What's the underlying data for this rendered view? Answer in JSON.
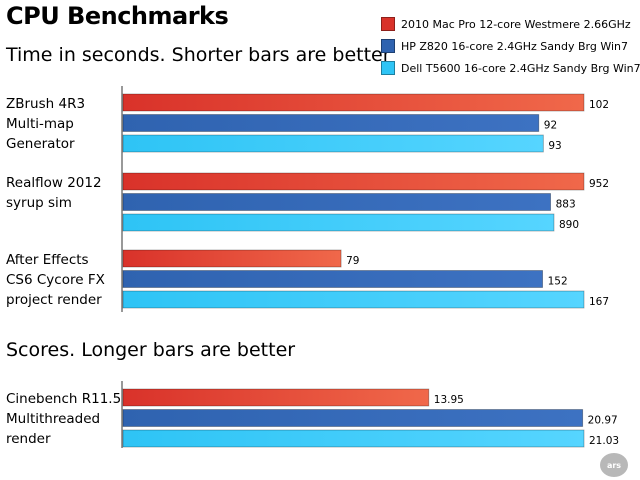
{
  "title": "CPU Benchmarks",
  "logo_text": "ars",
  "colors": {
    "series_0": "#d9322a",
    "series_1": "#2f63b0",
    "series_2": "#2ec4f5"
  },
  "chart_data": [
    {
      "type": "bar",
      "orientation": "horizontal",
      "subtitle": "Time in seconds. Shorter bars are better",
      "categories": [
        "ZBrush 4R3 Multi-map Generator",
        "Realflow 2012 syrup sim",
        "After Effects CS6 Cycore FX project render"
      ],
      "category_lines": [
        [
          "ZBrush 4R3",
          "Multi-map",
          "Generator"
        ],
        [
          "Realflow 2012",
          "syrup sim"
        ],
        [
          "After Effects",
          "CS6 Cycore FX",
          "project render"
        ]
      ],
      "series": [
        {
          "name": "2010 Mac Pro 12-core Westmere 2.66GHz",
          "values": [
            102,
            952,
            79
          ]
        },
        {
          "name": "HP Z820 16-core 2.4GHz Sandy Brg Win7",
          "values": [
            92,
            883,
            152
          ]
        },
        {
          "name": "Dell T5600 16-core 2.4GHz Sandy Brg Win7",
          "values": [
            93,
            890,
            167
          ]
        }
      ],
      "value_labels": [
        [
          "102",
          "952",
          "79"
        ],
        [
          "92",
          "883",
          "152"
        ],
        [
          "93",
          "890",
          "167"
        ]
      ],
      "scale": "independent per category (bars normalized to the largest value in each group)",
      "legend": "top-right",
      "grid": false
    },
    {
      "type": "bar",
      "orientation": "horizontal",
      "subtitle": "Scores. Longer bars are better",
      "categories": [
        "Cinebench R11.5 Multithreaded render"
      ],
      "category_lines": [
        [
          "Cinebench R11.5",
          "Multithreaded",
          "render"
        ]
      ],
      "series": [
        {
          "name": "2010 Mac Pro 12-core Westmere 2.66GHz",
          "values": [
            13.95
          ]
        },
        {
          "name": "HP Z820 16-core 2.4GHz Sandy Brg Win7",
          "values": [
            20.97
          ]
        },
        {
          "name": "Dell T5600 16-core 2.4GHz Sandy Brg Win7",
          "values": [
            21.03
          ]
        }
      ],
      "value_labels": [
        [
          "13.95"
        ],
        [
          "20.97"
        ],
        [
          "21.03"
        ]
      ],
      "scale": "normalized to the largest value",
      "grid": false
    }
  ]
}
